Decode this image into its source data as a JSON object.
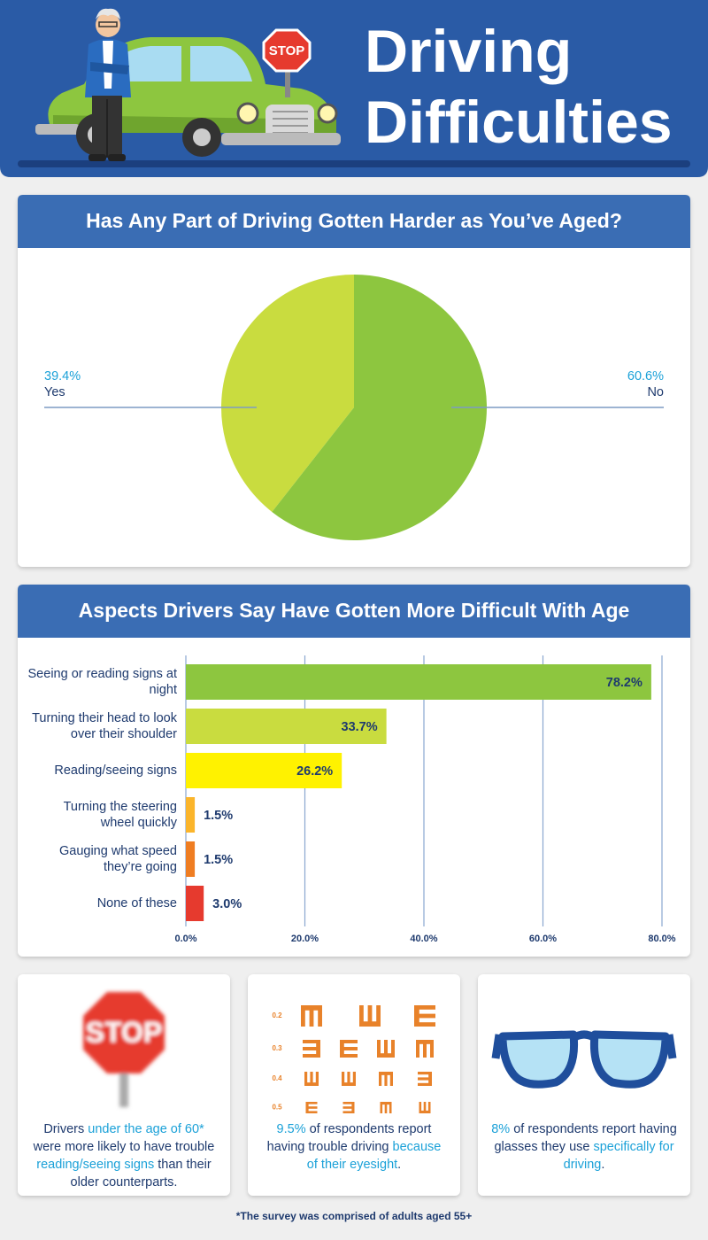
{
  "header": {
    "title": "Driving Difficulties",
    "sign": "STOP"
  },
  "chart_data": [
    {
      "type": "pie",
      "title": "Has Any Part of Driving Gotten Harder as You’ve Aged?",
      "categories": [
        "Yes",
        "No"
      ],
      "values": [
        39.4,
        60.6
      ],
      "value_labels": [
        "39.4%",
        "60.6%"
      ],
      "colors": [
        "#c9dc3f",
        "#8dc63f"
      ]
    },
    {
      "type": "bar",
      "orientation": "horizontal",
      "title": "Aspects Drivers Say Have Gotten More Difficult With Age",
      "categories": [
        "Seeing or reading signs at night",
        "Turning their head to look over their shoulder",
        "Reading/seeing signs",
        "Turning the steering wheel quickly",
        "Gauging what speed they’re going",
        "None of these"
      ],
      "values": [
        78.2,
        33.7,
        26.2,
        1.5,
        1.5,
        3.0
      ],
      "value_labels": [
        "78.2%",
        "33.7%",
        "26.2%",
        "1.5%",
        "1.5%",
        "3.0%"
      ],
      "colors": [
        "#8dc63f",
        "#c9dc3f",
        "#fff200",
        "#fbb52b",
        "#ef7d22",
        "#e63a2e"
      ],
      "xlim": [
        0,
        80
      ],
      "xticks": [
        {
          "value": 0,
          "label": "0.0%"
        },
        {
          "value": 20,
          "label": "20.0%"
        },
        {
          "value": 40,
          "label": "40.0%"
        },
        {
          "value": 60,
          "label": "60.0%"
        },
        {
          "value": 80,
          "label": "80.0%"
        }
      ],
      "grid": true
    }
  ],
  "cards": [
    {
      "sign": "STOP",
      "text": [
        {
          "t": "Drivers "
        },
        {
          "t": "under the age of 60*",
          "color": "#1ba1d8"
        },
        {
          "t": " were more likely to have trouble "
        },
        {
          "t": "reading/seeing signs",
          "color": "#1ba1d8"
        },
        {
          "t": " than their older counterparts."
        }
      ]
    },
    {
      "eye_chart": [
        "0.2",
        "0.3",
        "0.4",
        "0.5"
      ],
      "text": [
        {
          "t": "9.5%",
          "color": "#1ba1d8"
        },
        {
          "t": " of respondents report having trouble driving "
        },
        {
          "t": "because of their eyesight",
          "color": "#1ba1d8"
        },
        {
          "t": "."
        }
      ]
    },
    {
      "text": [
        {
          "t": "8%",
          "color": "#1ba1d8"
        },
        {
          "t": " of respondents report having glasses they use "
        },
        {
          "t": "specifically for driving",
          "color": "#1ba1d8"
        },
        {
          "t": "."
        }
      ]
    }
  ],
  "footnote": "*The survey was comprised of adults aged 55+"
}
